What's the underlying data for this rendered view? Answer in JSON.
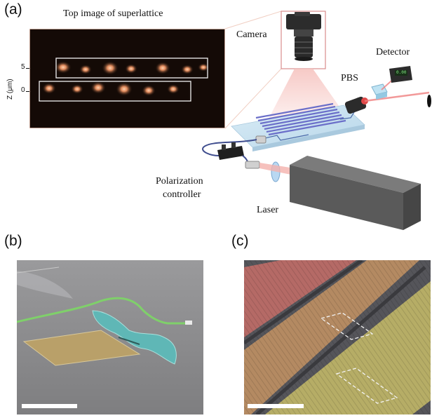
{
  "figure": {
    "panel_a": {
      "letter": "(a)",
      "inset_title": "Top image of superlattice",
      "z_axis_label": "Z (μm)",
      "z_ticks": [
        "5",
        "0"
      ],
      "labels": {
        "camera": "Camera",
        "detector": "Detector",
        "pbs": "PBS",
        "polarization_controller_line1": "Polarization",
        "polarization_controller_line2": "controller",
        "laser": "Laser"
      },
      "detector_readout": "0.00"
    },
    "panel_b": {
      "letter": "(b)"
    },
    "panel_c": {
      "letter": "(c)"
    },
    "colors": {
      "inset_bg": "#140a06",
      "inset_frame": "#f0c9b8",
      "sem_gray": "#8a8a8c",
      "pad_gold": "#b9a069",
      "membrane_teal": "#5fb7b6",
      "waveguide_green": "#7fd06a",
      "overlay_red": "#b56a66",
      "overlay_orange": "#b48a62",
      "overlay_yellow": "#b6ad66"
    }
  }
}
